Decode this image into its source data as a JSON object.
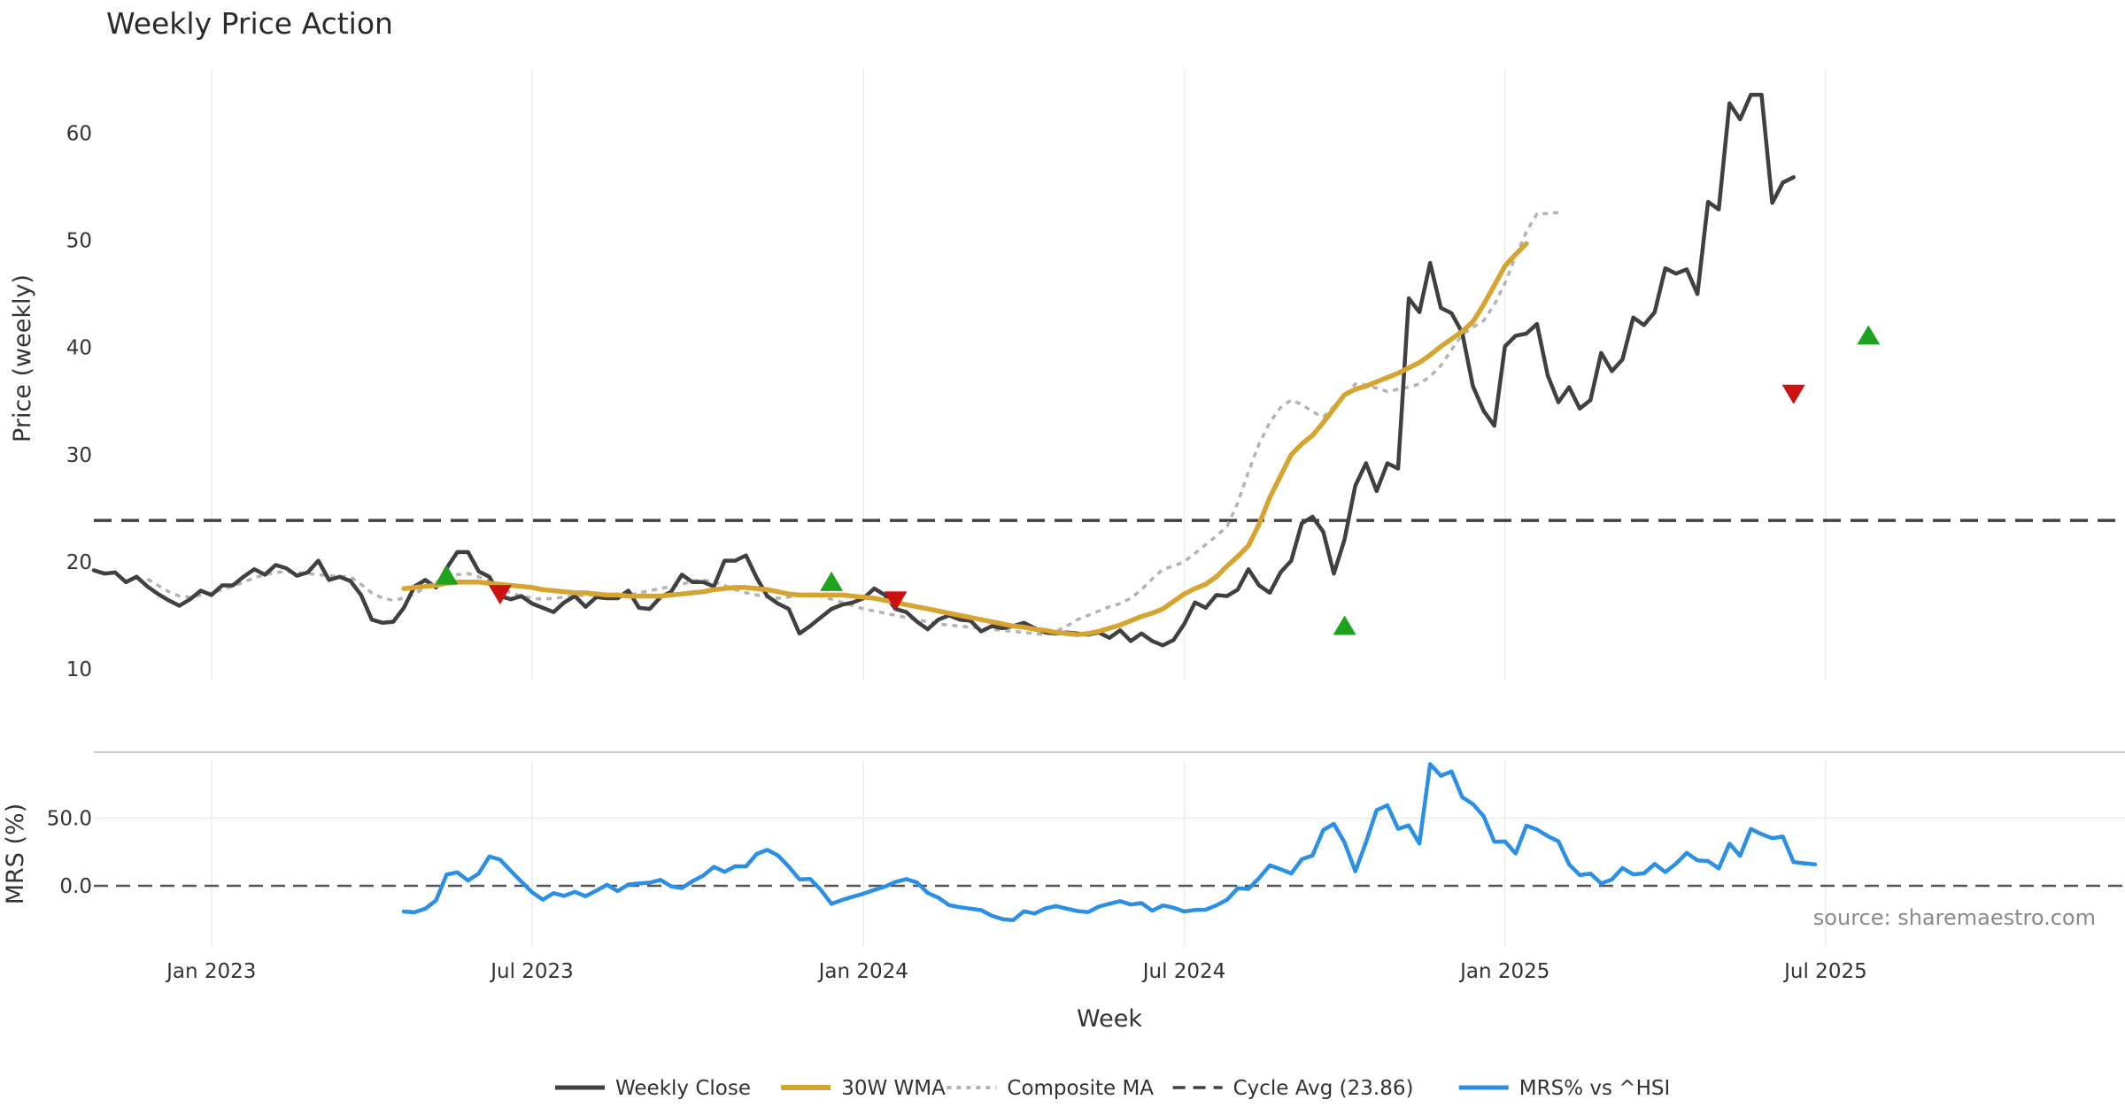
{
  "chart_data": {
    "type": "line",
    "title": "Weekly Price Action",
    "xlabel": "Week",
    "source": "source: sharemaestro.com",
    "x_ticks": [
      "Jan 2023",
      "Jul 2023",
      "Jan 2024",
      "Jul 2024",
      "Jan 2025",
      "Jul 2025"
    ],
    "x_range_weeks": [
      0,
      190
    ],
    "x_tick_weeks": [
      11,
      41,
      72,
      102,
      132,
      162
    ],
    "price_panel": {
      "ylabel": "Price (weekly)",
      "ylim": [
        9,
        66
      ],
      "y_ticks": [
        10,
        20,
        30,
        40,
        50,
        60
      ],
      "cycle_avg": 23.86
    },
    "mrs_panel": {
      "ylabel": "MRS (%)",
      "ylim": [
        -45,
        92
      ],
      "y_ticks": [
        0,
        50
      ],
      "y_tick_labels": [
        "0.0",
        "50.0"
      ]
    },
    "series": [
      {
        "name": "Weekly Close",
        "color": "#404040",
        "start_week": 0,
        "values": [
          19.2,
          18.9,
          19.0,
          18.1,
          18.6,
          17.7,
          17.0,
          16.4,
          15.9,
          16.5,
          17.3,
          16.9,
          17.8,
          17.8,
          18.6,
          19.3,
          18.8,
          19.7,
          19.4,
          18.7,
          19.0,
          20.1,
          18.3,
          18.6,
          18.2,
          16.9,
          14.6,
          14.3,
          14.4,
          15.7,
          17.7,
          18.3,
          17.6,
          19.4,
          20.9,
          20.9,
          19.1,
          18.6,
          16.8,
          16.5,
          16.8,
          16.1,
          15.7,
          15.3,
          16.2,
          16.8,
          15.8,
          16.7,
          16.6,
          16.6,
          17.3,
          15.7,
          15.6,
          16.7,
          17.2,
          18.8,
          18.1,
          18.1,
          17.7,
          20.1,
          20.1,
          20.6,
          18.5,
          16.8,
          16.1,
          15.6,
          13.3,
          14.0,
          14.8,
          15.6,
          16.0,
          16.2,
          16.6,
          17.5,
          16.9,
          15.6,
          15.3,
          14.4,
          13.7,
          14.6,
          15.0,
          14.6,
          14.5,
          13.5,
          14.0,
          13.8,
          14.0,
          14.3,
          13.8,
          13.4,
          13.3,
          13.4,
          13.3,
          13.2,
          13.4,
          12.9,
          13.6,
          12.6,
          13.3,
          12.6,
          12.2,
          12.7,
          14.2,
          16.2,
          15.7,
          16.9,
          16.8,
          17.4,
          19.3,
          17.8,
          17.1,
          19.0,
          20.1,
          23.6,
          24.2,
          22.8,
          18.9,
          22.1,
          27.1,
          29.2,
          26.6,
          29.2,
          28.7,
          44.6,
          43.3,
          47.9,
          43.7,
          43.2,
          41.4,
          36.4,
          34.1,
          32.7,
          40.1,
          41.1,
          41.3,
          42.2,
          37.4,
          34.9,
          36.3,
          34.3,
          35.1,
          39.5,
          37.8,
          38.9,
          42.8,
          42.1,
          43.3,
          47.4,
          46.9,
          47.3,
          45.0,
          53.6,
          52.9,
          62.8,
          61.3,
          63.6,
          63.6,
          53.5,
          55.4,
          55.9
        ]
      },
      {
        "name": "30W WMA",
        "color": "#d6a531",
        "start_week": 29,
        "values": [
          17.5,
          17.6,
          17.7,
          17.8,
          18.0,
          18.1,
          18.1,
          18.1,
          18.0,
          17.9,
          17.8,
          17.7,
          17.6,
          17.4,
          17.3,
          17.2,
          17.1,
          17.1,
          17.0,
          16.9,
          16.9,
          16.8,
          16.8,
          16.8,
          16.8,
          16.9,
          17.0,
          17.1,
          17.2,
          17.4,
          17.5,
          17.6,
          17.6,
          17.5,
          17.4,
          17.2,
          17.0,
          16.9,
          16.9,
          16.9,
          16.9,
          16.9,
          16.8,
          16.7,
          16.6,
          16.4,
          16.2,
          16.0,
          15.8,
          15.6,
          15.4,
          15.2,
          15.0,
          14.8,
          14.6,
          14.4,
          14.2,
          14.0,
          13.9,
          13.7,
          13.6,
          13.4,
          13.3,
          13.2,
          13.3,
          13.5,
          13.8,
          14.1,
          14.5,
          14.9,
          15.2,
          15.6,
          16.3,
          17.0,
          17.5,
          17.9,
          18.6,
          19.6,
          20.5,
          21.5,
          23.5,
          26.0,
          28.0,
          30.0,
          31.0,
          31.8,
          33.0,
          34.3,
          35.6,
          36.1,
          36.4,
          36.8,
          37.2,
          37.6,
          38.1,
          38.6,
          39.3,
          40.1,
          40.8,
          41.5,
          42.4,
          44.0,
          45.8,
          47.6,
          48.7,
          49.7
        ]
      },
      {
        "name": "Composite MA",
        "color": "#b3b3b3",
        "start_week": 5,
        "values": [
          18.4,
          17.8,
          17.2,
          16.8,
          16.7,
          16.9,
          17.1,
          17.4,
          17.7,
          18.1,
          18.5,
          18.8,
          19.0,
          19.1,
          19.0,
          18.9,
          18.8,
          18.7,
          18.6,
          18.6,
          17.9,
          17.1,
          16.6,
          16.4,
          16.6,
          17.0,
          17.6,
          18.1,
          18.5,
          18.8,
          18.9,
          18.6,
          18.2,
          17.6,
          17.1,
          16.8,
          16.6,
          16.5,
          16.6,
          16.7,
          16.8,
          16.9,
          16.9,
          16.8,
          16.7,
          16.9,
          17.1,
          17.3,
          17.5,
          17.7,
          17.9,
          18.2,
          18.3,
          18.1,
          17.8,
          17.4,
          17.1,
          16.9,
          16.7,
          16.6,
          16.7,
          16.9,
          17.0,
          16.8,
          16.5,
          16.2,
          15.9,
          15.6,
          15.4,
          15.2,
          15.0,
          14.8,
          14.6,
          14.4,
          14.2,
          14.1,
          14.0,
          13.9,
          13.8,
          13.7,
          13.6,
          13.5,
          13.4,
          13.3,
          13.2,
          13.5,
          14.0,
          14.6,
          15.0,
          15.4,
          15.8,
          16.1,
          16.6,
          17.4,
          18.4,
          19.3,
          19.6,
          20.0,
          20.8,
          21.6,
          22.4,
          23.3,
          25.5,
          28.4,
          31.0,
          33.0,
          34.4,
          35.1,
          34.7,
          34.0,
          33.5,
          34.5,
          35.5,
          36.6,
          36.5,
          36.2,
          35.9,
          36.1,
          36.3,
          36.6,
          37.3,
          38.3,
          39.8,
          41.2,
          41.9,
          42.5,
          44.0,
          46.0,
          48.5,
          50.8,
          52.5,
          52.5,
          52.6
        ]
      },
      {
        "name": "Cycle Avg (23.86)",
        "color": "#404040",
        "value": 23.86
      },
      {
        "name": "MRS% vs ^HSI",
        "color": "#2b8fe3",
        "start_week": 29,
        "values": [
          -19.0,
          -19.5,
          -16.9,
          -10.8,
          8.3,
          9.9,
          3.9,
          9.1,
          21.6,
          19.3,
          11.0,
          3.1,
          -4.8,
          -10.2,
          -5.4,
          -7.4,
          -4.4,
          -7.7,
          -3.6,
          0.8,
          -3.9,
          1.0,
          1.7,
          2.3,
          4.4,
          -0.4,
          -1.6,
          3.4,
          7.5,
          14.0,
          10.3,
          14.4,
          14.3,
          23.5,
          26.5,
          22.3,
          14.2,
          4.8,
          5.1,
          -3.0,
          -13.3,
          -10.4,
          -8.0,
          -5.8,
          -3.0,
          -0.6,
          2.9,
          5.0,
          2.4,
          -5.2,
          -8.7,
          -14.2,
          -15.8,
          -16.8,
          -17.9,
          -22.1,
          -24.6,
          -25.3,
          -18.8,
          -20.4,
          -16.7,
          -14.9,
          -16.8,
          -18.6,
          -19.4,
          -15.3,
          -13.2,
          -11.3,
          -13.8,
          -12.7,
          -18.3,
          -14.5,
          -16.1,
          -18.9,
          -17.8,
          -17.6,
          -14.4,
          -10.3,
          -1.8,
          -2.3,
          5.7,
          15.1,
          12.3,
          9.1,
          19.6,
          22.4,
          41.1,
          45.7,
          31.9,
          10.7,
          32.2,
          55.8,
          59.4,
          42.0,
          44.5,
          31.2,
          89.7,
          81.2,
          84.3,
          65.4,
          60.3,
          51.4,
          32.5,
          32.7,
          23.8,
          44.4,
          41.5,
          36.7,
          32.8,
          15.8,
          7.9,
          9.0,
          1.7,
          4.7,
          13.1,
          8.4,
          9.2,
          16.1,
          10.1,
          16.3,
          24.3,
          18.8,
          18.3,
          12.8,
          31.1,
          22.1,
          41.9,
          38.1,
          35.1,
          36.3,
          17.5,
          16.6,
          15.8
        ]
      }
    ],
    "signals": {
      "buy": [
        {
          "week": 33,
          "value": 18.7
        },
        {
          "week": 69,
          "value": 18.1
        },
        {
          "week": 117,
          "value": 14.0
        },
        {
          "week": 166,
          "value": 41.1
        }
      ],
      "sell": [
        {
          "week": 38,
          "value": 17.0
        },
        {
          "week": 75,
          "value": 16.4
        },
        {
          "week": 159,
          "value": 35.7
        }
      ]
    },
    "legend": {
      "position": "bottom-center",
      "items": [
        "Weekly Close",
        "30W WMA",
        "Composite MA",
        "Cycle Avg (23.86)",
        "MRS% vs ^HSI"
      ]
    }
  }
}
